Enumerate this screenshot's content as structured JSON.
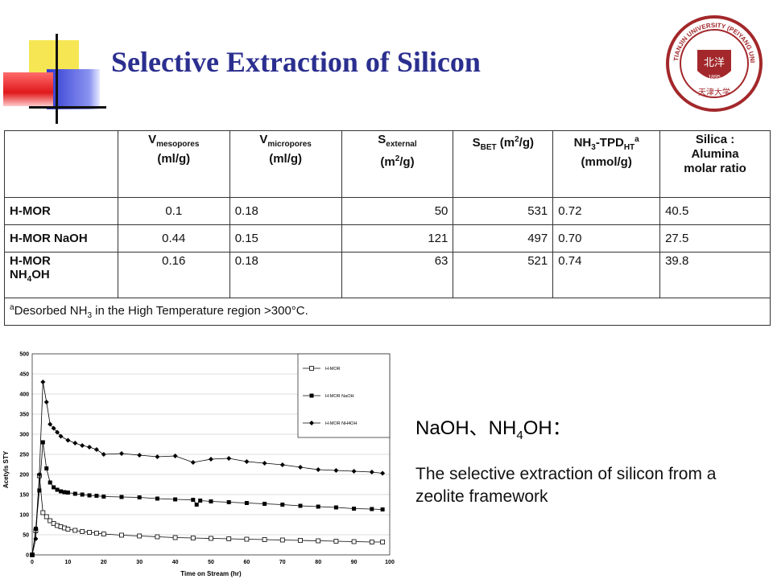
{
  "title": "Selective Extraction of Silicon",
  "seal": {
    "outer_text": "TIANJIN UNIVERSITY (PEIYANG UNIVERSITY)",
    "inner_text": "1895",
    "cn": "北洋",
    "cn_bottom": "天津大学",
    "color": "#a3282b"
  },
  "table": {
    "headers": [
      {
        "main": "V",
        "sub": "mesopores",
        "line2": "(ml/g)"
      },
      {
        "main": "V",
        "sub": "micropores",
        "line2": "(ml/g)"
      },
      {
        "main": "S",
        "sub": "external",
        "line2a": "(m",
        "line2sup": "2",
        "line2b": "/g)"
      },
      {
        "main": "S",
        "sub": "BET",
        "after": " (m",
        "sup": "2",
        "after2": "/g)"
      },
      {
        "main": "NH",
        "sub": "3",
        "after": "-TPD",
        "sub2": "HT",
        "sup": "a",
        "line2": "(mmol/g)"
      },
      {
        "line1": "Silica :",
        "line2": "Alumina",
        "line3": "molar ratio"
      }
    ],
    "rows": [
      {
        "label": "H-MOR",
        "values": [
          "0.1",
          "0.18",
          "50",
          "531",
          "0.72",
          "40.5"
        ]
      },
      {
        "label": "H-MOR NaOH",
        "values": [
          "0.44",
          "0.15",
          "121",
          "497",
          "0.70",
          "27.5"
        ]
      },
      {
        "label1": "H-MOR",
        "label2a": "NH",
        "label2sub": "4",
        "label2b": "OH",
        "values": [
          "0.16",
          "0.18",
          "63",
          "521",
          "0.74",
          "39.8"
        ]
      }
    ],
    "footnote": {
      "sup": "a",
      "a": "Desorbed NH",
      "sub": "3",
      "b": " in the High Temperature region >300°C."
    }
  },
  "caption1": {
    "a": "NaOH、NH",
    "sub": "4",
    "b": "OH："
  },
  "caption2": "The selective extraction of silicon from a zeolite framework",
  "chart_data": {
    "type": "line",
    "xlabel": "Time on Stream (hr)",
    "ylabel": "Acetyls STY",
    "xlim": [
      0,
      100
    ],
    "ylim": [
      0,
      500
    ],
    "xticks": [
      "0",
      "10",
      "20",
      "30",
      "40",
      "50",
      "60",
      "70",
      "80",
      "90",
      "100"
    ],
    "yticks": [
      "0",
      "50",
      "100",
      "150",
      "200",
      "250",
      "300",
      "350",
      "400",
      "450",
      "500"
    ],
    "legend_position": "top-right",
    "series": [
      {
        "name": "H-MOR",
        "marker": "open-square",
        "x": [
          0,
          1,
          2,
          3,
          4,
          5,
          6,
          7,
          8,
          9,
          10,
          12,
          14,
          16,
          18,
          20,
          25,
          30,
          35,
          40,
          45,
          50,
          55,
          60,
          65,
          70,
          75,
          80,
          85,
          90,
          95,
          98
        ],
        "y": [
          0,
          60,
          197,
          105,
          95,
          85,
          78,
          73,
          70,
          67,
          64,
          61,
          58,
          56,
          54,
          52,
          49,
          47,
          45,
          43,
          42,
          41,
          40,
          39,
          38,
          37,
          36,
          35,
          34,
          33,
          32,
          32
        ]
      },
      {
        "name": "H-MOR NaOH",
        "marker": "filled-square",
        "x": [
          0,
          1,
          2,
          3,
          4,
          5,
          6,
          7,
          8,
          9,
          10,
          12,
          14,
          16,
          18,
          20,
          25,
          30,
          35,
          40,
          45,
          46,
          47,
          50,
          55,
          60,
          65,
          70,
          75,
          80,
          85,
          90,
          95,
          98
        ],
        "y": [
          0,
          65,
          160,
          280,
          215,
          180,
          168,
          162,
          158,
          156,
          155,
          152,
          150,
          148,
          147,
          145,
          144,
          143,
          140,
          138,
          137,
          125,
          135,
          133,
          131,
          129,
          127,
          125,
          122,
          120,
          118,
          115,
          114,
          113
        ]
      },
      {
        "name": "H-MOR NH4OH",
        "marker": "filled-diamond",
        "x": [
          0,
          1,
          2,
          3,
          4,
          5,
          6,
          7,
          8,
          10,
          12,
          14,
          16,
          18,
          20,
          25,
          30,
          35,
          40,
          45,
          50,
          55,
          60,
          65,
          70,
          75,
          80,
          85,
          90,
          95,
          98
        ],
        "y": [
          0,
          40,
          200,
          430,
          380,
          325,
          315,
          305,
          295,
          285,
          278,
          272,
          268,
          262,
          250,
          252,
          248,
          244,
          246,
          230,
          238,
          240,
          232,
          228,
          224,
          218,
          212,
          210,
          208,
          206,
          203
        ]
      }
    ]
  }
}
